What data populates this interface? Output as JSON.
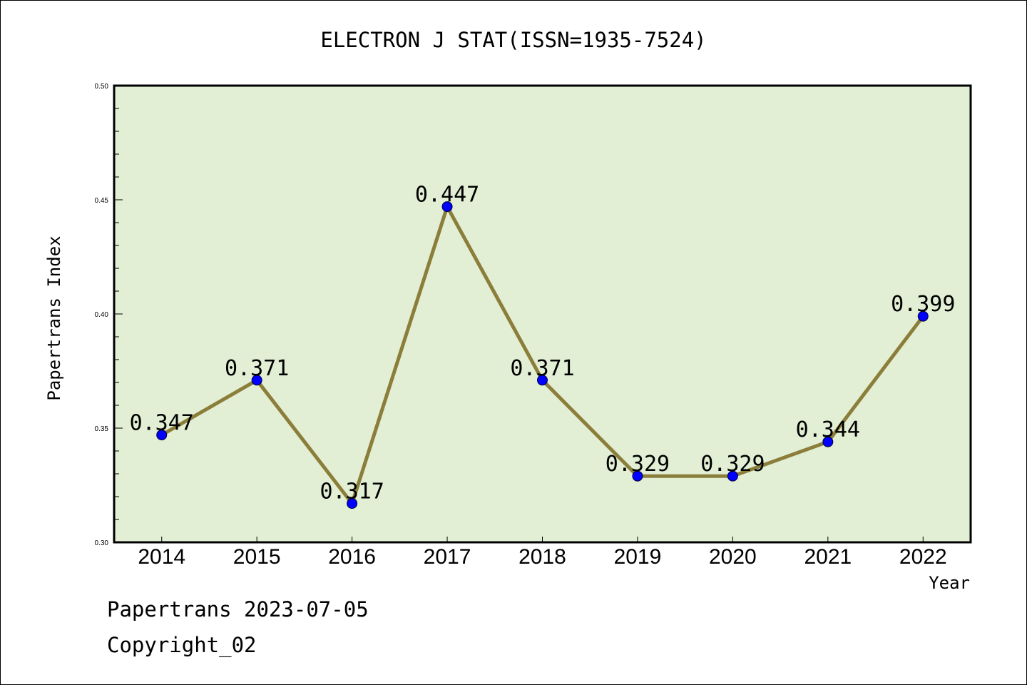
{
  "footer": {
    "line1": "Papertrans 2023-07-05",
    "line2": "Copyright_02"
  },
  "chart_data": {
    "type": "line",
    "title": "ELECTRON J STAT(ISSN=1935-7524)",
    "xlabel": "Year",
    "ylabel": "Papertrans Index",
    "x": [
      "2014",
      "2015",
      "2016",
      "2017",
      "2018",
      "2019",
      "2020",
      "2021",
      "2022"
    ],
    "series": [
      {
        "values": [
          0.347,
          0.371,
          0.317,
          0.447,
          0.371,
          0.329,
          0.329,
          0.344,
          0.399
        ],
        "labels": [
          "0.347",
          "0.371",
          "0.317",
          "0.447",
          "0.371",
          "0.329",
          "0.329",
          "0.344",
          "0.399"
        ]
      }
    ],
    "ylim": [
      0.3,
      0.5
    ],
    "yticks": [
      "0.30",
      "0.35",
      "0.40",
      "0.45",
      "0.50"
    ],
    "grid": false,
    "legend": "none",
    "colors": {
      "plot_background": "#e2efd4",
      "line": "#8b7d3a",
      "marker": "#0000ff"
    }
  }
}
